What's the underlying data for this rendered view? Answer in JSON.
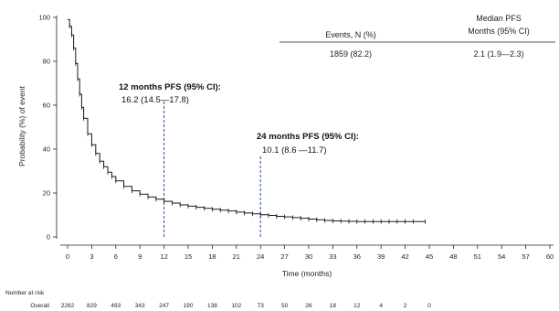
{
  "chart_data": {
    "type": "line",
    "subtype": "kaplan-meier",
    "ylabel": "Probability (%) of event",
    "xlabel": "Time (months)",
    "xlim": [
      0,
      60
    ],
    "ylim": [
      0,
      100
    ],
    "x_ticks": [
      0,
      3,
      6,
      9,
      12,
      15,
      18,
      21,
      24,
      27,
      30,
      33,
      36,
      39,
      42,
      45,
      48,
      51,
      54,
      57,
      60
    ],
    "y_ticks": [
      0,
      20,
      40,
      60,
      80,
      100
    ],
    "line_color": "#1a1a1a",
    "reference_color": "#1f4e9c",
    "series": [
      {
        "x": [
          0,
          0.25,
          0.5,
          0.75,
          1,
          1.25,
          1.5,
          1.75,
          2,
          2.5,
          3,
          3.5,
          4,
          4.5,
          5,
          5.5,
          6,
          7,
          8,
          9,
          10,
          11,
          12,
          13,
          14,
          15,
          16,
          17,
          18,
          19,
          20,
          21,
          22,
          23,
          24,
          25,
          26,
          27,
          28,
          29,
          30,
          31,
          32,
          33,
          34,
          35,
          36,
          37,
          38,
          39,
          40,
          41,
          42,
          43,
          44.5
        ],
        "y": [
          99,
          96,
          92,
          86,
          79,
          72,
          65,
          59,
          54,
          47,
          42,
          38,
          34.5,
          32,
          29.5,
          27.5,
          25.5,
          23,
          21,
          19.5,
          18.2,
          17.2,
          16.2,
          15.4,
          14.6,
          14,
          13.5,
          13,
          12.6,
          12.2,
          11.8,
          11.3,
          10.9,
          10.5,
          10.1,
          9.8,
          9.4,
          9.1,
          8.8,
          8.5,
          8.1,
          7.8,
          7.5,
          7.3,
          7.2,
          7.1,
          7,
          7,
          7,
          7,
          7,
          7,
          7,
          7,
          7
        ]
      }
    ],
    "reference_lines": [
      {
        "x": 12,
        "y": 16.2
      },
      {
        "x": 24,
        "y": 10.1
      }
    ]
  },
  "annotations": {
    "a12_title": "12 months PFS (95% CI):",
    "a12_value": "16.2 (14.5—17.8)",
    "a24_title": "24 months PFS (95% CI):",
    "a24_value": "10.1 (8.6 —11.7)"
  },
  "summary_table": {
    "col1_header": "Events, N (%)",
    "col2_header_line1": "Median PFS",
    "col2_header_line2": "Months (95% CI)",
    "col1_value": "1859 (82.2)",
    "col2_value": "2.1 (1.9—2.3)"
  },
  "risk_table": {
    "title": "Number at risk",
    "row_label": "Overall",
    "times": [
      0,
      3,
      6,
      9,
      12,
      15,
      18,
      21,
      24,
      27,
      30,
      33,
      36,
      39,
      42,
      45
    ],
    "values": [
      "2262",
      "829",
      "493",
      "343",
      "247",
      "190",
      "138",
      "102",
      "73",
      "50",
      "26",
      "18",
      "12",
      "4",
      "2",
      "0"
    ]
  }
}
